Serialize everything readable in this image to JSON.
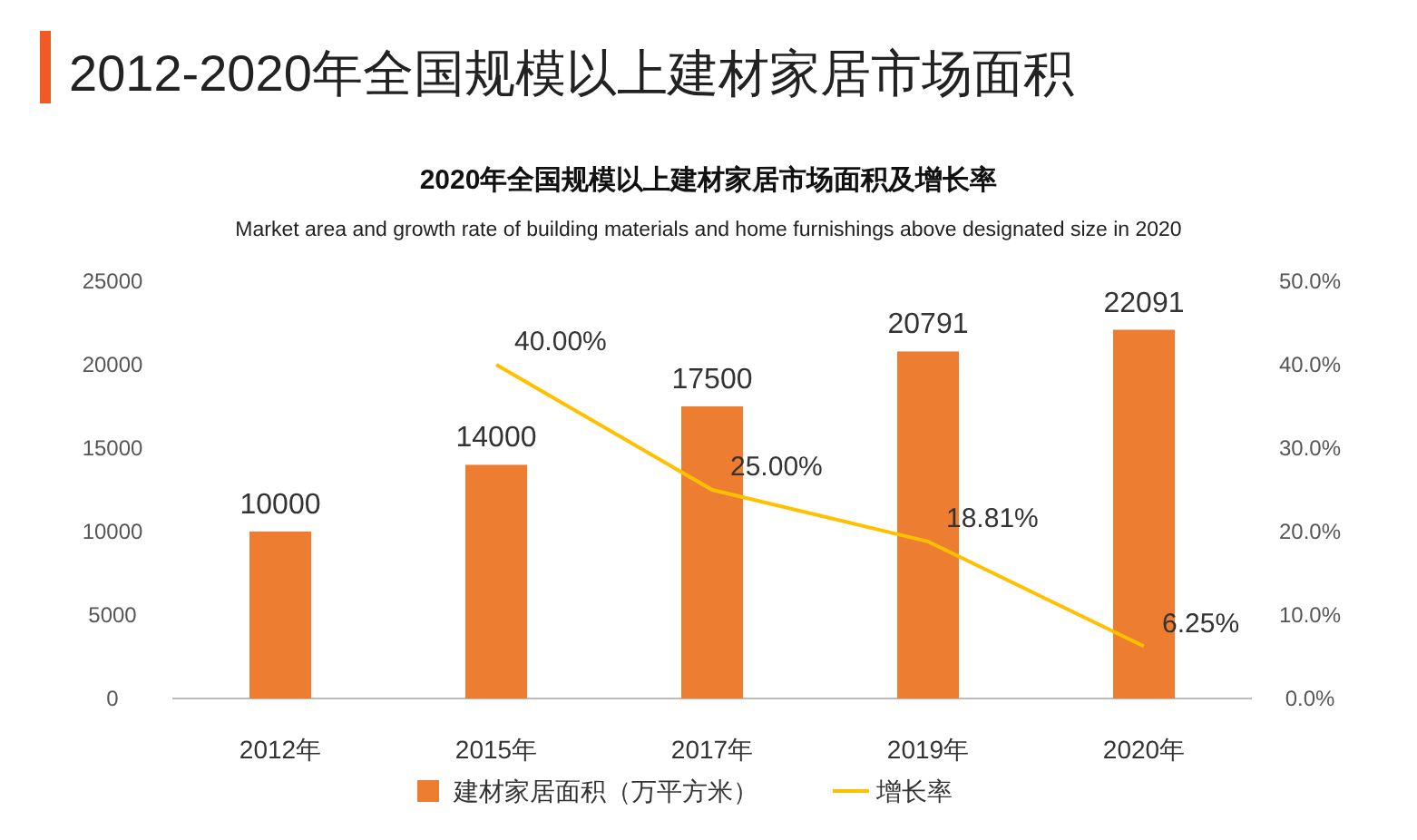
{
  "chart_data": {
    "type": "bar",
    "title": "2012-2020年全国规模以上建材家居市场面积",
    "subtitle": "2020年全国规模以上建材家居市场面积及增长率",
    "annotations": [
      "Market area and growth rate of building materials and home furnishings above designated size in 2020"
    ],
    "categories": [
      "2012年",
      "2015年",
      "2017年",
      "2019年",
      "2020年"
    ],
    "series": [
      {
        "name": "建材家居面积（万平方米）",
        "color": "#ed7d31",
        "values": [
          10000,
          14000,
          17500,
          20791,
          22091
        ],
        "value_labels": [
          "10000",
          "14000",
          "17500",
          "20791",
          "22091"
        ]
      },
      {
        "name": "增长率",
        "type": "line",
        "axis": "y2",
        "color": "#ffc000",
        "values": [
          null,
          40.0,
          25.0,
          18.81,
          6.25
        ],
        "value_labels": [
          null,
          "40.00%",
          "25.00%",
          "18.81%",
          "6.25%"
        ]
      }
    ],
    "ylim": [
      0,
      25000
    ],
    "yticks": [
      0,
      5000,
      10000,
      15000,
      20000,
      25000
    ],
    "y2lim": [
      0,
      50
    ],
    "y2ticks": [
      {
        "value": 0,
        "label": "0.0%"
      },
      {
        "value": 10,
        "label": "10.0%"
      },
      {
        "value": 20,
        "label": "20.0%"
      },
      {
        "value": 30,
        "label": "30.0%"
      },
      {
        "value": 40,
        "label": "40.0%"
      },
      {
        "value": 50,
        "label": "50.0%"
      }
    ],
    "legend": "bottom"
  }
}
